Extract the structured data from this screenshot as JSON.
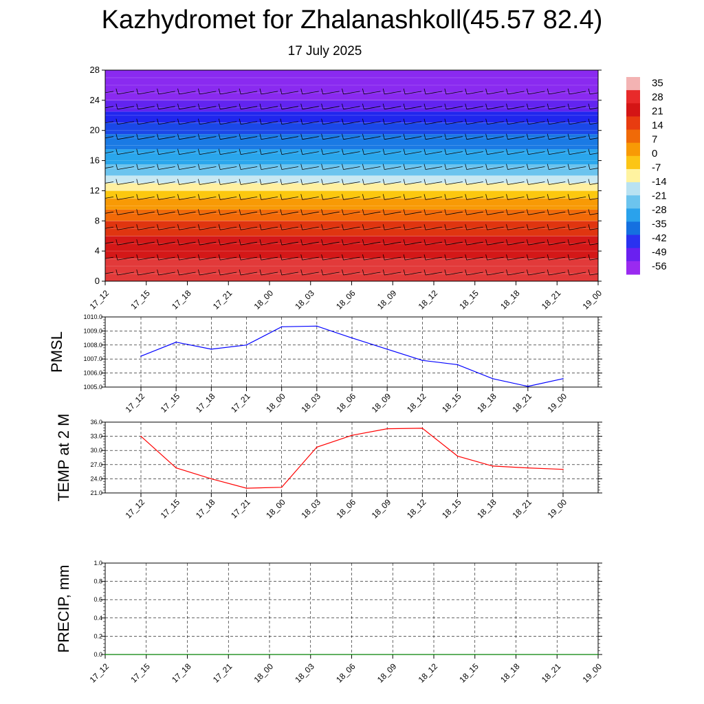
{
  "title": "Kazhydromet for Zhalanashkoll(45.57 82.4)",
  "subtitle": "17 July 2025",
  "chart_data": [
    {
      "type": "heatmap",
      "name": "vertical temperature cross-section with wind barbs",
      "x_ticks": [
        "17_12",
        "17_15",
        "17_18",
        "17_21",
        "18_00",
        "18_03",
        "18_06",
        "18_09",
        "18_12",
        "18_15",
        "18_18",
        "18_21",
        "19_00"
      ],
      "y_ticks": [
        0,
        4,
        8,
        12,
        16,
        20,
        24,
        28
      ],
      "ylim": [
        0,
        28
      ],
      "colorbar": {
        "labels": [
          "35",
          "28",
          "21",
          "14",
          "7",
          "0",
          "-7",
          "-14",
          "-21",
          "-28",
          "-35",
          "-42",
          "-49",
          "-56"
        ],
        "colors": [
          "#f3b3b3",
          "#e82a2a",
          "#d41515",
          "#e83c10",
          "#f06a08",
          "#f89a05",
          "#fcc515",
          "#fff3a0",
          "#b9e2f2",
          "#6cc4ee",
          "#2aa2ec",
          "#1570e0",
          "#2a32f0",
          "#6a20f0",
          "#9a2af0"
        ]
      },
      "bands": [
        {
          "from": 0,
          "to": 3,
          "value": 32,
          "color": "#e23a3a"
        },
        {
          "from": 3,
          "to": 6,
          "value": 28,
          "color": "#d41818"
        },
        {
          "from": 6,
          "to": 8,
          "value": 21,
          "color": "#e03510"
        },
        {
          "from": 8,
          "to": 9.5,
          "value": 14,
          "color": "#f26a08"
        },
        {
          "from": 9.5,
          "to": 11,
          "value": 7,
          "color": "#f89a05"
        },
        {
          "from": 11,
          "to": 12,
          "value": 0,
          "color": "#fcc80f"
        },
        {
          "from": 12,
          "to": 13,
          "value": -7,
          "color": "#fff0a0"
        },
        {
          "from": 13,
          "to": 14,
          "value": -14,
          "color": "#c8e8f2"
        },
        {
          "from": 14,
          "to": 15.5,
          "value": -21,
          "color": "#6cc4ee"
        },
        {
          "from": 15.5,
          "to": 17.5,
          "value": -28,
          "color": "#2aa6ec"
        },
        {
          "from": 17.5,
          "to": 19.5,
          "value": -35,
          "color": "#1a7ae4"
        },
        {
          "from": 19.5,
          "to": 21,
          "value": -42,
          "color": "#1a48e8"
        },
        {
          "from": 21,
          "to": 22.5,
          "value": -49,
          "color": "#2026ee"
        },
        {
          "from": 22.5,
          "to": 24,
          "value": -56,
          "color": "#6224f0"
        },
        {
          "from": 24,
          "to": 28,
          "value": -60,
          "color": "#8a2af0"
        }
      ]
    },
    {
      "type": "line",
      "ylabel": "PMSL",
      "ylim": [
        1005,
        1010
      ],
      "y_ticks": [
        "1005.0",
        "1006.0",
        "1007.0",
        "1008.0",
        "1009.0",
        "1010.0"
      ],
      "x_ticks": [
        "17_12",
        "17_15",
        "17_18",
        "17_21",
        "18_00",
        "18_03",
        "18_06",
        "18_09",
        "18_12",
        "18_15",
        "18_18",
        "18_21",
        "19_00"
      ],
      "color": "#0000ff",
      "values": [
        1007.2,
        1008.2,
        1007.7,
        1008.0,
        1009.3,
        1009.35,
        1008.5,
        1007.7,
        1006.9,
        1006.6,
        1005.6,
        1005.05,
        1005.6
      ]
    },
    {
      "type": "line",
      "ylabel": "TEMP at 2 M",
      "ylim": [
        21,
        36
      ],
      "y_ticks": [
        "21.0",
        "24.0",
        "27.0",
        "30.0",
        "33.0",
        "36.0"
      ],
      "x_ticks": [
        "17_12",
        "17_15",
        "17_18",
        "17_21",
        "18_00",
        "18_03",
        "18_06",
        "18_09",
        "18_12",
        "18_15",
        "18_18",
        "18_21",
        "19_00"
      ],
      "color": "#ff0000",
      "values": [
        33.0,
        26.3,
        24.0,
        22.0,
        22.2,
        30.7,
        33.2,
        34.6,
        34.7,
        28.8,
        26.7,
        26.3,
        26.0
      ]
    },
    {
      "type": "line",
      "ylabel": "PRECIP, mm",
      "ylim": [
        0,
        1
      ],
      "y_ticks": [
        "0.0",
        "0.2",
        "0.4",
        "0.6",
        "0.8",
        "1.0"
      ],
      "x_ticks": [
        "17_12",
        "17_15",
        "17_18",
        "17_21",
        "18_00",
        "18_03",
        "18_06",
        "18_09",
        "18_12",
        "18_15",
        "18_18",
        "18_21",
        "19_00"
      ],
      "color": "#008000",
      "values": [
        0,
        0,
        0,
        0,
        0,
        0,
        0,
        0,
        0,
        0,
        0,
        0,
        0
      ]
    }
  ]
}
